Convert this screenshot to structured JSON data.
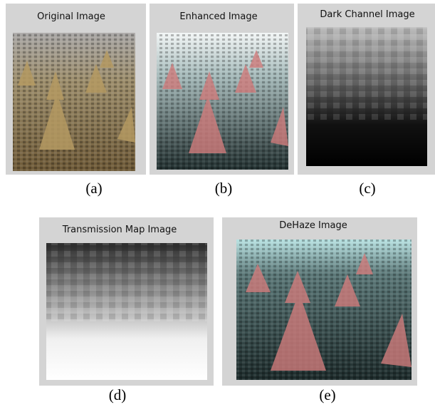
{
  "panels": [
    {
      "title": "Original Image",
      "caption": "(a)"
    },
    {
      "title": "Enhanced Image",
      "caption": "(b)"
    },
    {
      "title": "Dark Channel Image",
      "caption": "(c)"
    },
    {
      "title": "Transmission Map Image",
      "caption": "(d)"
    },
    {
      "title": "DeHaze Image",
      "caption": "(e)"
    }
  ]
}
